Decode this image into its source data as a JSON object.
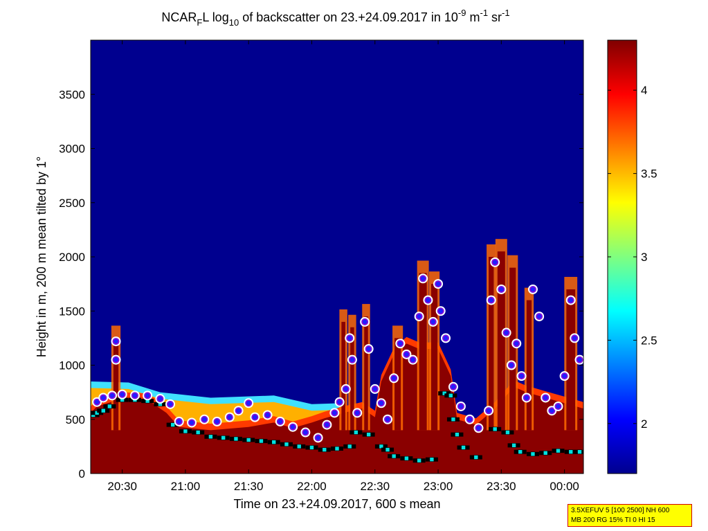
{
  "chart_data": {
    "type": "heatmap",
    "title": {
      "prefix": "NCAR",
      "sub1": "F",
      "mid": "L log",
      "sub2": "10",
      "mid2": " of backscatter on 23.+24.09.2017 in 10",
      "sup1": "-9",
      "mid3": " m",
      "sup2": "-1",
      "mid4": " sr",
      "sup3": "-1"
    },
    "xlabel": "Time on 23.+24.09.2017, 600 s mean",
    "ylabel": "Height in m, 200 m mean tilted by 1°",
    "x_range_hours": [
      20.25,
      24.15
    ],
    "y_range": [
      0,
      4000
    ],
    "x_ticks": [
      {
        "t": 20.5,
        "label": "20:30"
      },
      {
        "t": 21.0,
        "label": "21:00"
      },
      {
        "t": 21.5,
        "label": "21:30"
      },
      {
        "t": 22.0,
        "label": "22:00"
      },
      {
        "t": 22.5,
        "label": "22:30"
      },
      {
        "t": 23.0,
        "label": "23:00"
      },
      {
        "t": 23.5,
        "label": "23:30"
      },
      {
        "t": 24.0,
        "label": "00:00"
      }
    ],
    "y_ticks": [
      0,
      500,
      1000,
      1500,
      2000,
      2500,
      3000,
      3500
    ],
    "colorbar": {
      "range": [
        1.7,
        4.3
      ],
      "ticks": [
        2,
        2.5,
        3,
        3.5,
        4
      ],
      "tick_labels": [
        "2",
        "2.5",
        "3",
        "3.5",
        "4"
      ]
    },
    "background_value": 1.75,
    "boundary_layer_height": [
      [
        20.25,
        560
      ],
      [
        20.3,
        620
      ],
      [
        20.5,
        690
      ],
      [
        20.7,
        680
      ],
      [
        20.85,
        560
      ],
      [
        20.95,
        430
      ],
      [
        21.2,
        400
      ],
      [
        21.5,
        430
      ],
      [
        21.7,
        470
      ],
      [
        21.85,
        420
      ],
      [
        22.0,
        470
      ],
      [
        22.1,
        510
      ],
      [
        22.25,
        560
      ],
      [
        22.4,
        600
      ],
      [
        22.5,
        520
      ],
      [
        22.55,
        850
      ],
      [
        22.65,
        1100
      ],
      [
        22.75,
        1200
      ],
      [
        22.85,
        1150
      ],
      [
        23.0,
        1150
      ],
      [
        23.1,
        900
      ],
      [
        23.15,
        500
      ],
      [
        23.3,
        450
      ],
      [
        23.45,
        600
      ],
      [
        23.6,
        800
      ],
      [
        23.7,
        750
      ],
      [
        23.85,
        700
      ],
      [
        24.0,
        650
      ],
      [
        24.15,
        600
      ]
    ],
    "cloud_plumes": [
      {
        "t": 20.45,
        "top": 1250,
        "w": 0.04
      },
      {
        "t": 22.25,
        "top": 1400,
        "w": 0.03
      },
      {
        "t": 22.32,
        "top": 1350,
        "w": 0.03
      },
      {
        "t": 22.43,
        "top": 1450,
        "w": 0.03
      },
      {
        "t": 22.68,
        "top": 1250,
        "w": 0.05
      },
      {
        "t": 22.88,
        "top": 1850,
        "w": 0.06
      },
      {
        "t": 22.97,
        "top": 1750,
        "w": 0.05
      },
      {
        "t": 23.42,
        "top": 2000,
        "w": 0.04
      },
      {
        "t": 23.5,
        "top": 2050,
        "w": 0.06
      },
      {
        "t": 23.59,
        "top": 1900,
        "w": 0.05
      },
      {
        "t": 23.72,
        "top": 1600,
        "w": 0.04
      },
      {
        "t": 24.05,
        "top": 1700,
        "w": 0.07
      }
    ],
    "aerosol_layer": [
      [
        20.25,
        850
      ],
      [
        20.55,
        840
      ],
      [
        20.8,
        750
      ],
      [
        21.2,
        700
      ],
      [
        21.7,
        720
      ],
      [
        22.0,
        640
      ],
      [
        22.25,
        650
      ]
    ],
    "cloud_base_markers": [
      [
        20.27,
        540
      ],
      [
        20.3,
        560
      ],
      [
        20.35,
        580
      ],
      [
        20.4,
        620
      ],
      [
        20.5,
        680
      ],
      [
        20.6,
        680
      ],
      [
        20.7,
        670
      ],
      [
        20.8,
        640
      ],
      [
        20.9,
        450
      ],
      [
        21.0,
        390
      ],
      [
        21.1,
        380
      ],
      [
        21.2,
        340
      ],
      [
        21.3,
        330
      ],
      [
        21.4,
        320
      ],
      [
        21.5,
        310
      ],
      [
        21.6,
        300
      ],
      [
        21.7,
        290
      ],
      [
        21.8,
        270
      ],
      [
        21.9,
        250
      ],
      [
        22.0,
        240
      ],
      [
        22.1,
        220
      ],
      [
        22.2,
        230
      ],
      [
        22.3,
        250
      ],
      [
        22.35,
        380
      ],
      [
        22.45,
        360
      ],
      [
        22.55,
        250
      ],
      [
        22.6,
        220
      ],
      [
        22.65,
        160
      ],
      [
        22.75,
        140
      ],
      [
        22.85,
        120
      ],
      [
        22.95,
        130
      ],
      [
        23.05,
        740
      ],
      [
        23.1,
        720
      ],
      [
        23.12,
        500
      ],
      [
        23.15,
        360
      ],
      [
        23.2,
        240
      ],
      [
        23.3,
        150
      ],
      [
        23.45,
        410
      ],
      [
        23.55,
        380
      ],
      [
        23.6,
        260
      ],
      [
        23.65,
        200
      ],
      [
        23.75,
        180
      ],
      [
        23.85,
        190
      ],
      [
        23.95,
        210
      ],
      [
        24.05,
        200
      ],
      [
        24.12,
        200
      ]
    ],
    "cloud_top_markers": [
      [
        20.3,
        660
      ],
      [
        20.35,
        700
      ],
      [
        20.42,
        720
      ],
      [
        20.5,
        730
      ],
      [
        20.6,
        720
      ],
      [
        20.7,
        720
      ],
      [
        20.8,
        690
      ],
      [
        20.88,
        640
      ],
      [
        20.45,
        1220
      ],
      [
        20.45,
        1050
      ],
      [
        20.95,
        480
      ],
      [
        21.05,
        470
      ],
      [
        21.15,
        500
      ],
      [
        21.25,
        480
      ],
      [
        21.35,
        520
      ],
      [
        21.42,
        580
      ],
      [
        21.5,
        650
      ],
      [
        21.55,
        520
      ],
      [
        21.65,
        540
      ],
      [
        21.75,
        480
      ],
      [
        21.85,
        430
      ],
      [
        21.95,
        380
      ],
      [
        22.05,
        330
      ],
      [
        22.12,
        450
      ],
      [
        22.18,
        560
      ],
      [
        22.22,
        660
      ],
      [
        22.27,
        780
      ],
      [
        22.3,
        1250
      ],
      [
        22.32,
        1050
      ],
      [
        22.36,
        560
      ],
      [
        22.42,
        1400
      ],
      [
        22.45,
        1150
      ],
      [
        22.5,
        780
      ],
      [
        22.55,
        650
      ],
      [
        22.6,
        500
      ],
      [
        22.65,
        880
      ],
      [
        22.7,
        1200
      ],
      [
        22.75,
        1100
      ],
      [
        22.8,
        1050
      ],
      [
        22.85,
        1450
      ],
      [
        22.88,
        1800
      ],
      [
        22.92,
        1600
      ],
      [
        22.96,
        1400
      ],
      [
        23.0,
        1750
      ],
      [
        23.02,
        1500
      ],
      [
        23.06,
        1250
      ],
      [
        23.12,
        800
      ],
      [
        23.18,
        620
      ],
      [
        23.25,
        500
      ],
      [
        23.32,
        420
      ],
      [
        23.4,
        580
      ],
      [
        23.42,
        1600
      ],
      [
        23.45,
        1950
      ],
      [
        23.5,
        1700
      ],
      [
        23.54,
        1300
      ],
      [
        23.58,
        1000
      ],
      [
        23.62,
        1200
      ],
      [
        23.66,
        900
      ],
      [
        23.7,
        700
      ],
      [
        23.75,
        1700
      ],
      [
        23.8,
        1450
      ],
      [
        23.85,
        700
      ],
      [
        23.9,
        580
      ],
      [
        23.95,
        620
      ],
      [
        24.0,
        900
      ],
      [
        24.05,
        1600
      ],
      [
        24.08,
        1250
      ],
      [
        24.12,
        1050
      ]
    ]
  },
  "info_box": {
    "line1": "3.5XEFUV 5 [100 2500] NH 600",
    "line2": "MB 200 RG 15% TI 0 HI 15"
  }
}
